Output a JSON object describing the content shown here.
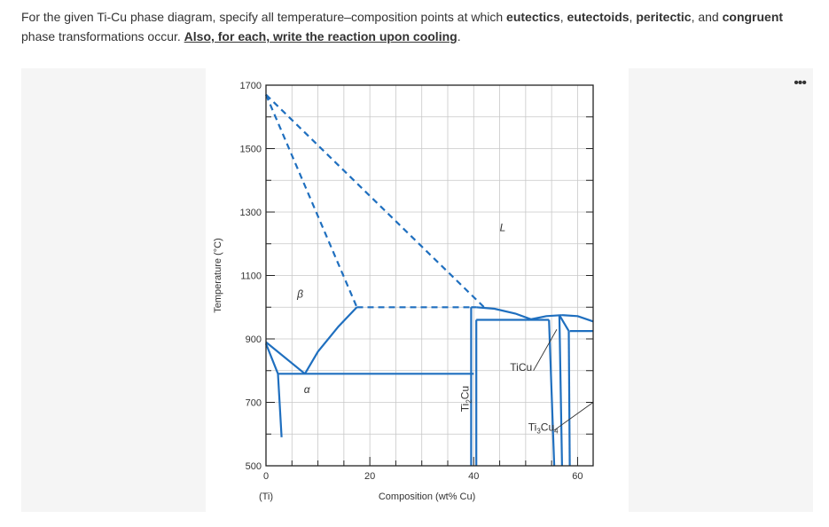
{
  "question": {
    "part1": "For the given Ti-Cu phase diagram, specify all temperature–composition points at which ",
    "eutectics": "eutectics",
    "sep1": ", ",
    "eutectoids": "eutectoids",
    "sep2": ", ",
    "peritectic": "peritectic",
    "sep3": ", and ",
    "congruent": "congruent",
    "part2": " phase transformations occur. ",
    "instruction": "Also, for each, write the reaction upon cooling",
    "end": "."
  },
  "menu": {
    "more_icon": "•••"
  },
  "chart_data": {
    "type": "phase-diagram",
    "xlabel": "Composition (wt% Cu)",
    "ylabel": "Temperature (°C)",
    "xlim": [
      0,
      63
    ],
    "ylim": [
      500,
      1700
    ],
    "x_ticks": [
      0,
      20,
      40,
      60
    ],
    "x_tick_labels": [
      "0",
      "20",
      "40",
      "60"
    ],
    "x_sub_label": "(Ti)",
    "y_ticks": [
      500,
      700,
      900,
      1100,
      1300,
      1500,
      1700
    ],
    "y_tick_labels": [
      "500",
      "700",
      "900",
      "1100",
      "1300",
      "1500",
      "1700"
    ],
    "grid": true,
    "line_color": "#1f6fbf",
    "phase_labels": [
      {
        "text": "L",
        "x": 45,
        "y": 1240,
        "italic": true
      },
      {
        "text": "β",
        "x": 6,
        "y": 1030,
        "italic": true
      },
      {
        "text": "α",
        "x": 7.3,
        "y": 730,
        "italic": true
      },
      {
        "text": "Ti2Cu",
        "x": 39,
        "y": 670,
        "rotate": true
      },
      {
        "text": "TiCu",
        "x": 47,
        "y": 800
      },
      {
        "text": "Ti3Cu4",
        "x": 50.5,
        "y": 610
      }
    ],
    "solid_lines": [
      {
        "name": "beta-alpha-left",
        "points": [
          [
            0,
            890
          ],
          [
            7.5,
            790
          ]
        ]
      },
      {
        "name": "alpha-solvus",
        "points": [
          [
            0,
            885
          ],
          [
            2.3,
            790
          ],
          [
            3,
            590
          ]
        ]
      },
      {
        "name": "beta-eutectoid-boundary",
        "points": [
          [
            7.5,
            790
          ],
          [
            10,
            860
          ],
          [
            14,
            940
          ],
          [
            17.5,
            1000
          ]
        ]
      },
      {
        "name": "eutectoid-isotherm",
        "points": [
          [
            2.3,
            790
          ],
          [
            40,
            790
          ]
        ]
      },
      {
        "name": "ti2cu-left",
        "points": [
          [
            39.5,
            1000
          ],
          [
            39.5,
            500
          ]
        ]
      },
      {
        "name": "ti2cu-right",
        "points": [
          [
            40.5,
            960
          ],
          [
            40.5,
            500
          ]
        ]
      },
      {
        "name": "ti2cu-top",
        "points": [
          [
            39.5,
            1000
          ],
          [
            40.5,
            1000
          ]
        ]
      },
      {
        "name": "eutectic-isotherm-960",
        "points": [
          [
            40.5,
            960
          ],
          [
            54.5,
            960
          ]
        ]
      },
      {
        "name": "liquidus-L-ti2cu",
        "points": [
          [
            40.5,
            1000
          ],
          [
            44,
            995
          ],
          [
            48,
            980
          ],
          [
            51,
            962
          ]
        ]
      },
      {
        "name": "ticu-liquidus-left",
        "points": [
          [
            50.5,
            960
          ],
          [
            54,
            972
          ],
          [
            57,
            975
          ]
        ]
      },
      {
        "name": "ticu-left",
        "points": [
          [
            54.5,
            960
          ],
          [
            55.5,
            500
          ]
        ]
      },
      {
        "name": "ticu-right",
        "points": [
          [
            56.5,
            975
          ],
          [
            57,
            500
          ]
        ]
      },
      {
        "name": "peritectic-925",
        "points": [
          [
            58.5,
            925
          ],
          [
            63,
            925
          ]
        ]
      },
      {
        "name": "ti3cu4-liquidus",
        "points": [
          [
            57,
            975
          ],
          [
            60,
            972
          ],
          [
            63,
            955
          ]
        ]
      },
      {
        "name": "ti3cu4-left",
        "points": [
          [
            58.3,
            925
          ],
          [
            58.5,
            500
          ]
        ]
      },
      {
        "name": "ticu-ti3cu4-join",
        "points": [
          [
            56.5,
            975
          ],
          [
            58.3,
            925
          ]
        ]
      }
    ],
    "dashed_lines": [
      {
        "name": "beta-liquidus",
        "points": [
          [
            0,
            1670
          ],
          [
            42,
            1000
          ]
        ]
      },
      {
        "name": "beta-solidus",
        "points": [
          [
            0,
            1670
          ],
          [
            17.5,
            1000
          ]
        ]
      },
      {
        "name": "peritectic-1000",
        "points": [
          [
            17.5,
            1000
          ],
          [
            39.5,
            1000
          ]
        ]
      }
    ],
    "leaders": [
      {
        "from": [
          51.5,
          800
        ],
        "to": [
          56,
          930
        ]
      },
      {
        "from": [
          55.5,
          612
        ],
        "to": [
          63,
          700
        ]
      }
    ]
  }
}
